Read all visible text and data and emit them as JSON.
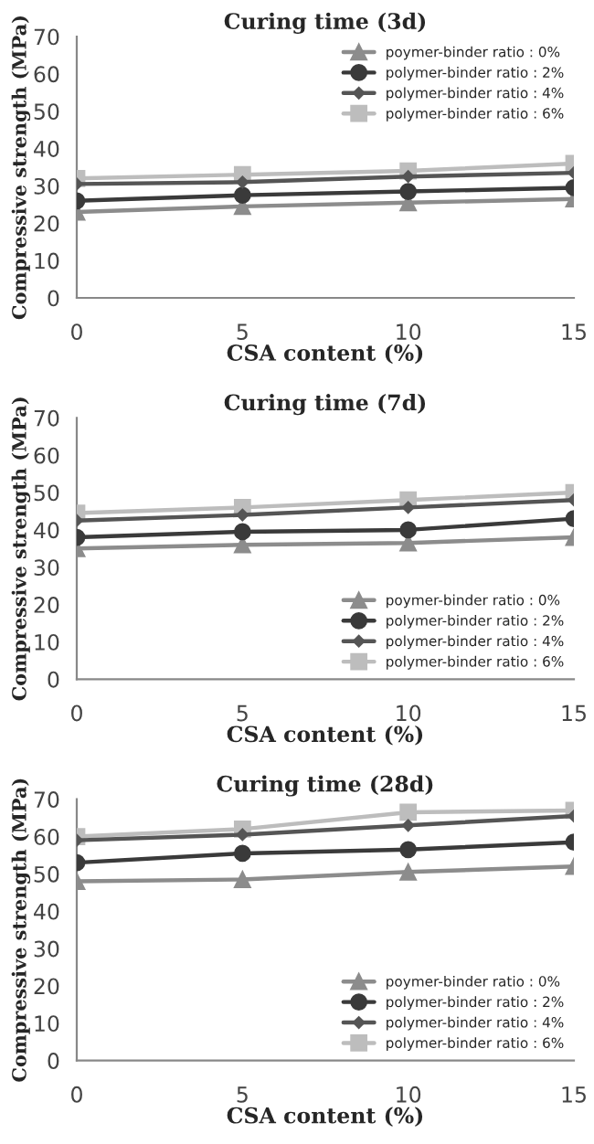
{
  "chart_data": [
    {
      "type": "line",
      "title": "Curing time (3d)",
      "xlabel": "CSA content (%)",
      "ylabel": "Compressive strength (MPa)",
      "x": [
        0,
        5,
        10,
        15
      ],
      "xlim": [
        0,
        15
      ],
      "xticks": [
        0,
        5,
        10,
        15
      ],
      "ylim": [
        0,
        70
      ],
      "yticks": [
        0,
        10,
        20,
        30,
        40,
        50,
        60,
        70
      ],
      "legend": "top right",
      "grid": false,
      "series": [
        {
          "name": "poymer-binder ratio : 0%",
          "color": "#8c8c8c",
          "marker": "triangle",
          "values": [
            23,
            24.5,
            25.5,
            26.5
          ]
        },
        {
          "name": "polymer-binder ratio : 2%",
          "color": "#3a3a3a",
          "marker": "circle",
          "values": [
            26,
            27.5,
            28.5,
            29.5
          ]
        },
        {
          "name": "polymer-binder ratio : 4%",
          "color": "#555555",
          "marker": "diamond",
          "values": [
            30.5,
            31,
            32.5,
            33.5
          ]
        },
        {
          "name": "polymer-binder ratio : 6%",
          "color": "#bdbdbd",
          "marker": "square",
          "values": [
            32,
            33,
            34,
            36
          ]
        }
      ]
    },
    {
      "type": "line",
      "title": "Curing time (7d)",
      "xlabel": "CSA content (%)",
      "ylabel": "Compressive strength (MPa)",
      "x": [
        0,
        5,
        10,
        15
      ],
      "xlim": [
        0,
        15
      ],
      "xticks": [
        0,
        5,
        10,
        15
      ],
      "ylim": [
        0,
        70
      ],
      "yticks": [
        0,
        10,
        20,
        30,
        40,
        50,
        60,
        70
      ],
      "legend": "bottom right",
      "grid": false,
      "series": [
        {
          "name": "poymer-binder ratio : 0%",
          "color": "#8c8c8c",
          "marker": "triangle",
          "values": [
            35,
            36,
            36.5,
            38
          ]
        },
        {
          "name": "polymer-binder ratio : 2%",
          "color": "#3a3a3a",
          "marker": "circle",
          "values": [
            38,
            39.5,
            40,
            43
          ]
        },
        {
          "name": "polymer-binder ratio : 4%",
          "color": "#555555",
          "marker": "diamond",
          "values": [
            42.5,
            44,
            46,
            48
          ]
        },
        {
          "name": "polymer-binder ratio : 6%",
          "color": "#bdbdbd",
          "marker": "square",
          "values": [
            44.5,
            46,
            48,
            50
          ]
        }
      ]
    },
    {
      "type": "line",
      "title": "Curing time (28d)",
      "xlabel": "CSA content (%)",
      "ylabel": "Compressive strength (MPa)",
      "x": [
        0,
        5,
        10,
        15
      ],
      "xlim": [
        0,
        15
      ],
      "xticks": [
        0,
        5,
        10,
        15
      ],
      "ylim": [
        0,
        70
      ],
      "yticks": [
        0,
        10,
        20,
        30,
        40,
        50,
        60,
        70
      ],
      "legend": "bottom right",
      "grid": false,
      "series": [
        {
          "name": "poymer-binder ratio : 0%",
          "color": "#8c8c8c",
          "marker": "triangle",
          "values": [
            48,
            48.5,
            50.5,
            52
          ]
        },
        {
          "name": "polymer-binder ratio : 2%",
          "color": "#3a3a3a",
          "marker": "circle",
          "values": [
            53,
            55.5,
            56.5,
            58.5
          ]
        },
        {
          "name": "polymer-binder ratio : 4%",
          "color": "#555555",
          "marker": "diamond",
          "values": [
            59,
            60.5,
            63,
            65.5
          ]
        },
        {
          "name": "polymer-binder ratio : 6%",
          "color": "#bdbdbd",
          "marker": "square",
          "values": [
            60,
            62,
            66.5,
            67
          ]
        }
      ]
    }
  ]
}
